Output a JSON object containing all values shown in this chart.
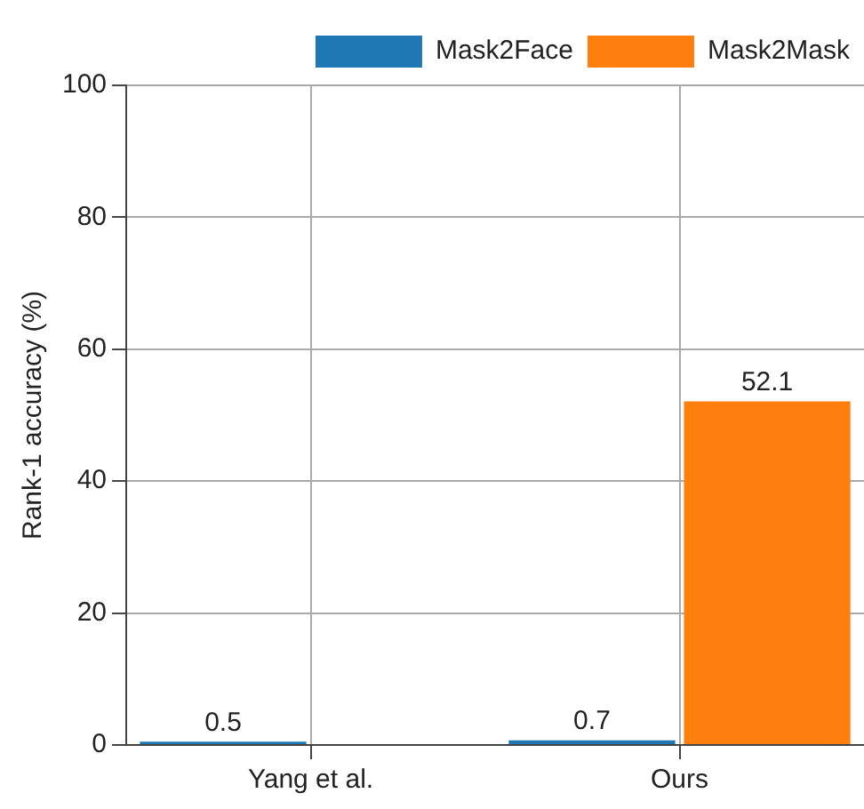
{
  "chart_data": {
    "type": "bar",
    "ylabel": "Rank-1 accuracy (%)",
    "categories": [
      "Yang et al.",
      "Ours"
    ],
    "series": [
      {
        "name": "Mask2Face",
        "color": "#1f77b4",
        "values": [
          0.5,
          0.7
        ]
      },
      {
        "name": "Mask2Mask",
        "color": "#ff7f0e",
        "values": [
          null,
          52.1
        ]
      }
    ],
    "ylim": [
      0,
      100
    ],
    "yticks": [
      0,
      20,
      40,
      60,
      80,
      100
    ],
    "grid": true,
    "legend": "top right",
    "data_labels": true
  }
}
